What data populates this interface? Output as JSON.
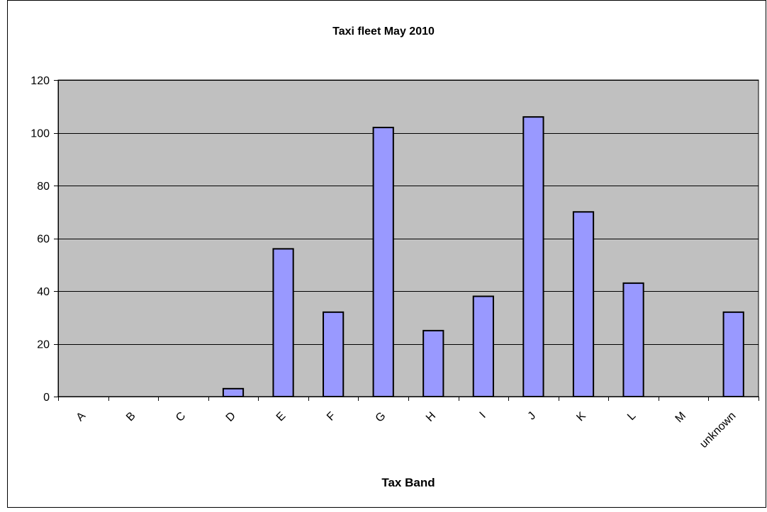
{
  "chart_data": {
    "type": "bar",
    "title": "Taxi fleet May 2010",
    "xlabel": "Tax Band",
    "ylabel": "",
    "categories": [
      "A",
      "B",
      "C",
      "D",
      "E",
      "F",
      "G",
      "H",
      "I",
      "J",
      "K",
      "L",
      "M",
      "unknown"
    ],
    "values": [
      0,
      0,
      0,
      3,
      56,
      32,
      102,
      25,
      38,
      106,
      70,
      43,
      0,
      32
    ],
    "ylim": [
      0,
      120
    ],
    "yticks": [
      0,
      20,
      40,
      60,
      80,
      100,
      120
    ],
    "grid": true,
    "legend": "none",
    "colors": {
      "bar_fill": "#9999ff",
      "bar_stroke": "#000000",
      "plot_background": "#c0c0c0",
      "gridline": "#000000",
      "frame": "#000000"
    }
  }
}
